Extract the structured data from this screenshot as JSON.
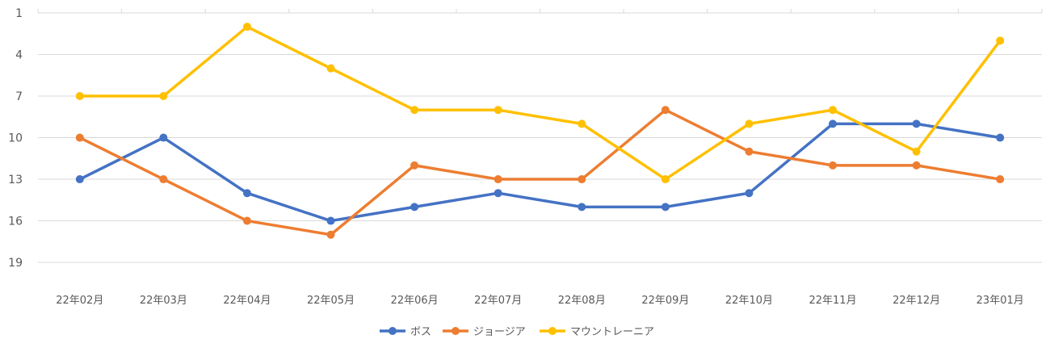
{
  "chart_data": {
    "type": "line",
    "title": "",
    "xlabel": "",
    "ylabel": "",
    "y_inverted": true,
    "ylim": [
      1,
      19
    ],
    "y_ticks": [
      "1",
      "4",
      "7",
      "10",
      "13",
      "16",
      "19"
    ],
    "grid": true,
    "legend_position": "bottom",
    "categories": [
      "22年02月",
      "22年03月",
      "22年04月",
      "22年05月",
      "22年06月",
      "22年07月",
      "22年08月",
      "22年09月",
      "22年10月",
      "22年11月",
      "22年12月",
      "23年01月"
    ],
    "series": [
      {
        "name": "ボス",
        "color": "#4472C4",
        "values": [
          13,
          10,
          14,
          16,
          15,
          14,
          15,
          15,
          14,
          9,
          9,
          10
        ]
      },
      {
        "name": "ジョージア",
        "color": "#ED7D31",
        "values": [
          10,
          13,
          16,
          17,
          12,
          13,
          13,
          8,
          11,
          12,
          12,
          13
        ]
      },
      {
        "name": "マウントレーニア",
        "color": "#FFC000",
        "values": [
          7,
          7,
          2,
          5,
          8,
          8,
          9,
          13,
          9,
          8,
          11,
          3
        ]
      }
    ]
  }
}
